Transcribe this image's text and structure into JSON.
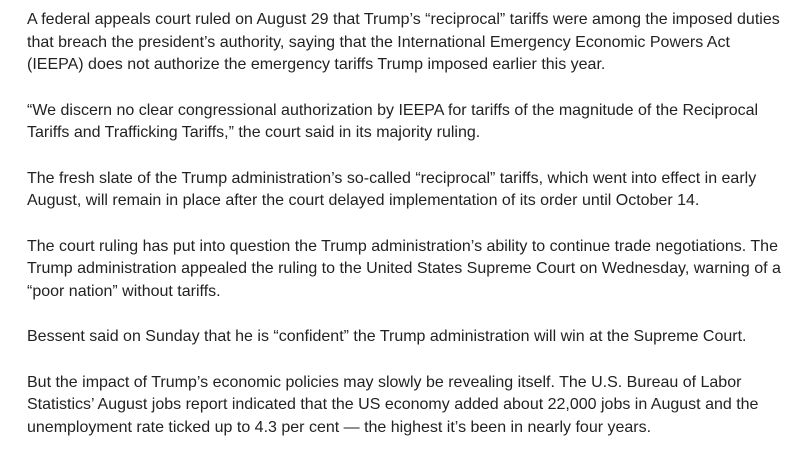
{
  "article": {
    "paragraphs": [
      "A federal appeals court ruled on August 29 that Trump’s “reciprocal” tariffs were among the imposed duties that breach the president’s authority, saying that the International Emergency Economic Powers Act (IEEPA) does not authorize the emergency tariffs Trump imposed earlier this year.",
      "“We discern no clear congressional authorization by IEEPA for tariffs of the magnitude of the Reciprocal Tariffs and Trafficking Tariffs,” the court said in its majority ruling.",
      "The fresh slate of the Trump administration’s so-called “reciprocal” tariffs, which went into effect in early August, will remain in place after the court delayed implementation of its order until October 14.",
      "The court ruling has put into question the Trump administration’s ability to continue trade negotiations. The Trump administration appealed the ruling to the United States Supreme Court on Wednesday, warning of a “poor nation” without tariffs.",
      "Bessent said on Sunday that he is “confident” the Trump administration will win at the Supreme Court.",
      "But the impact of Trump’s economic policies may slowly be revealing itself. The U.S. Bureau of Labor Statistics’ August jobs report indicated that the US economy added about 22,000 jobs in August and the unemployment rate ticked up to 4.3 per cent — the highest it’s been in nearly four years."
    ]
  }
}
